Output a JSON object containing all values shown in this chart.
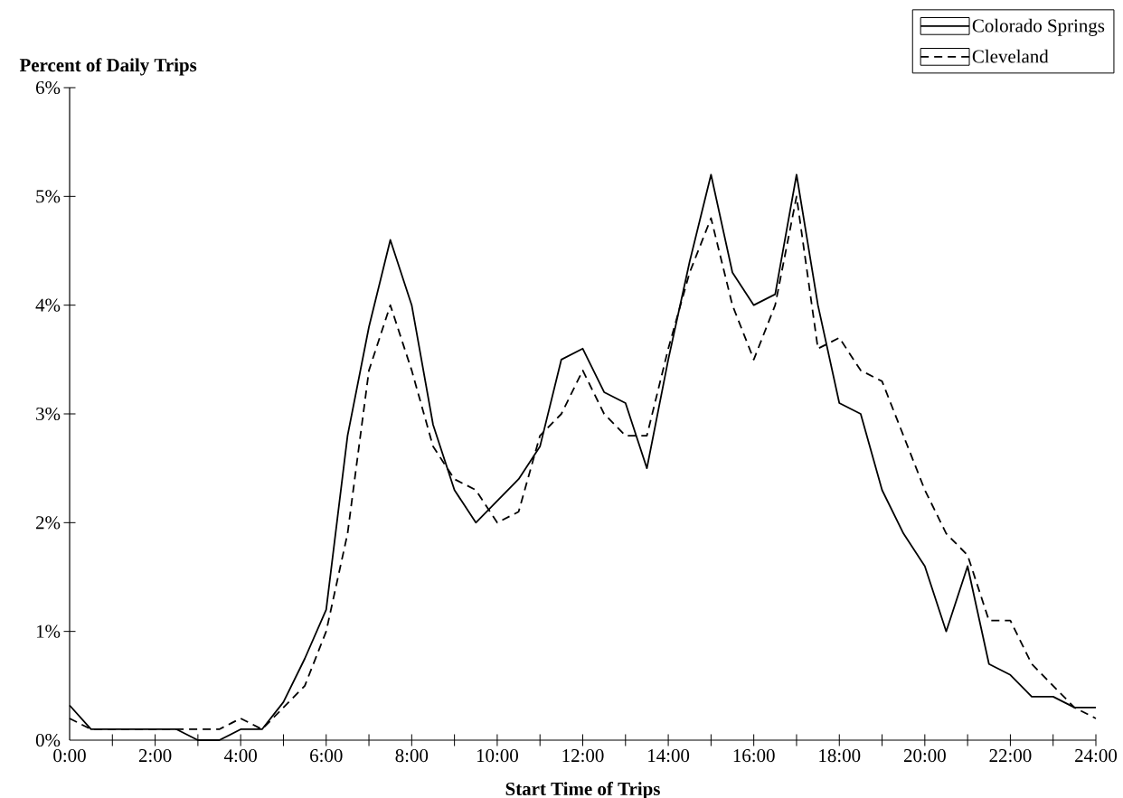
{
  "chart_data": {
    "type": "line",
    "xlabel": "Start Time of Trips",
    "ylabel": "Percent of Daily Trips",
    "x": [
      0,
      0.5,
      1,
      1.5,
      2,
      2.5,
      3,
      3.5,
      4,
      4.5,
      5,
      5.5,
      6,
      6.5,
      7,
      7.5,
      8,
      8.5,
      9,
      9.5,
      10,
      10.5,
      11,
      11.5,
      12,
      12.5,
      13,
      13.5,
      14,
      14.5,
      15,
      15.5,
      16,
      16.5,
      17,
      17.5,
      18,
      18.5,
      19,
      19.5,
      20,
      20.5,
      21,
      21.5,
      22,
      22.5,
      23,
      23.5,
      24
    ],
    "series": [
      {
        "name": "Colorado Springs",
        "color": "#000000",
        "line_style": "solid",
        "values": [
          0.32,
          0.1,
          0.1,
          0.1,
          0.1,
          0.1,
          0.0,
          0.0,
          0.1,
          0.1,
          0.35,
          0.75,
          1.2,
          2.8,
          3.8,
          4.6,
          4.0,
          2.9,
          2.3,
          2.0,
          2.2,
          2.4,
          2.7,
          3.5,
          3.6,
          3.2,
          3.1,
          2.5,
          3.5,
          4.4,
          5.2,
          4.3,
          4.0,
          4.1,
          5.2,
          4.0,
          3.1,
          3.0,
          2.3,
          1.9,
          1.6,
          1.0,
          1.6,
          0.7,
          0.6,
          0.4,
          0.4,
          0.3,
          0.3
        ]
      },
      {
        "name": "Cleveland",
        "color": "#000000",
        "line_style": "dashed",
        "values": [
          0.2,
          0.1,
          0.1,
          0.1,
          0.1,
          0.1,
          0.1,
          0.1,
          0.2,
          0.1,
          0.3,
          0.5,
          1.0,
          1.9,
          3.4,
          4.0,
          3.4,
          2.7,
          2.4,
          2.3,
          2.0,
          2.1,
          2.8,
          3.0,
          3.4,
          3.0,
          2.8,
          2.8,
          3.6,
          4.3,
          4.8,
          4.0,
          3.5,
          4.0,
          5.0,
          3.6,
          3.7,
          3.4,
          3.3,
          2.8,
          2.3,
          1.9,
          1.7,
          1.1,
          1.1,
          0.7,
          0.5,
          0.3,
          0.2
        ]
      }
    ],
    "xlim": [
      0,
      24
    ],
    "xticks": [
      {
        "value": 0,
        "label": "0:00"
      },
      {
        "value": 1,
        "label": null
      },
      {
        "value": 2,
        "label": "2:00"
      },
      {
        "value": 3,
        "label": null
      },
      {
        "value": 4,
        "label": "4:00"
      },
      {
        "value": 5,
        "label": null
      },
      {
        "value": 6,
        "label": "6:00"
      },
      {
        "value": 7,
        "label": null
      },
      {
        "value": 8,
        "label": "8:00"
      },
      {
        "value": 9,
        "label": null
      },
      {
        "value": 10,
        "label": "10:00"
      },
      {
        "value": 11,
        "label": null
      },
      {
        "value": 12,
        "label": "12:00"
      },
      {
        "value": 13,
        "label": null
      },
      {
        "value": 14,
        "label": "14:00"
      },
      {
        "value": 15,
        "label": null
      },
      {
        "value": 16,
        "label": "16:00"
      },
      {
        "value": 17,
        "label": null
      },
      {
        "value": 18,
        "label": "18:00"
      },
      {
        "value": 19,
        "label": null
      },
      {
        "value": 20,
        "label": "20:00"
      },
      {
        "value": 21,
        "label": null
      },
      {
        "value": 22,
        "label": "22:00"
      },
      {
        "value": 23,
        "label": null
      },
      {
        "value": 24,
        "label": "24:00"
      }
    ],
    "ylim": [
      0,
      6
    ],
    "yticks": [
      {
        "value": 0,
        "label": "0%"
      },
      {
        "value": 1,
        "label": "1%"
      },
      {
        "value": 2,
        "label": "2%"
      },
      {
        "value": 3,
        "label": "3%"
      },
      {
        "value": 4,
        "label": "4%"
      },
      {
        "value": 5,
        "label": "5%"
      },
      {
        "value": 6,
        "label": "6%"
      }
    ],
    "grid": false,
    "legend": "top right",
    "marker": "none"
  }
}
